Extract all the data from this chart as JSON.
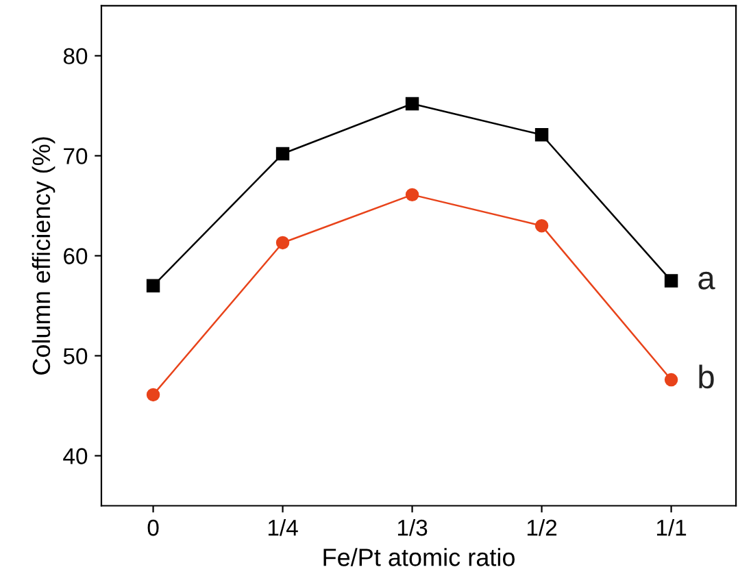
{
  "chart_data": {
    "type": "line",
    "xlabel": "Fe/Pt atomic ratio",
    "ylabel": "Column efficiency (%)",
    "categories": [
      "0",
      "1/4",
      "1/3",
      "1/2",
      "1/1"
    ],
    "series": [
      {
        "name": "a",
        "color": "#000000",
        "marker": "square",
        "values": [
          57.0,
          70.2,
          75.2,
          72.1,
          57.5
        ]
      },
      {
        "name": "b",
        "color": "#e8431a",
        "marker": "circle",
        "values": [
          46.1,
          61.3,
          66.1,
          63.0,
          47.6
        ]
      }
    ],
    "ylim": [
      35,
      85
    ],
    "yticks": [
      40,
      50,
      60,
      70,
      80
    ],
    "grid": false,
    "legend": false
  }
}
